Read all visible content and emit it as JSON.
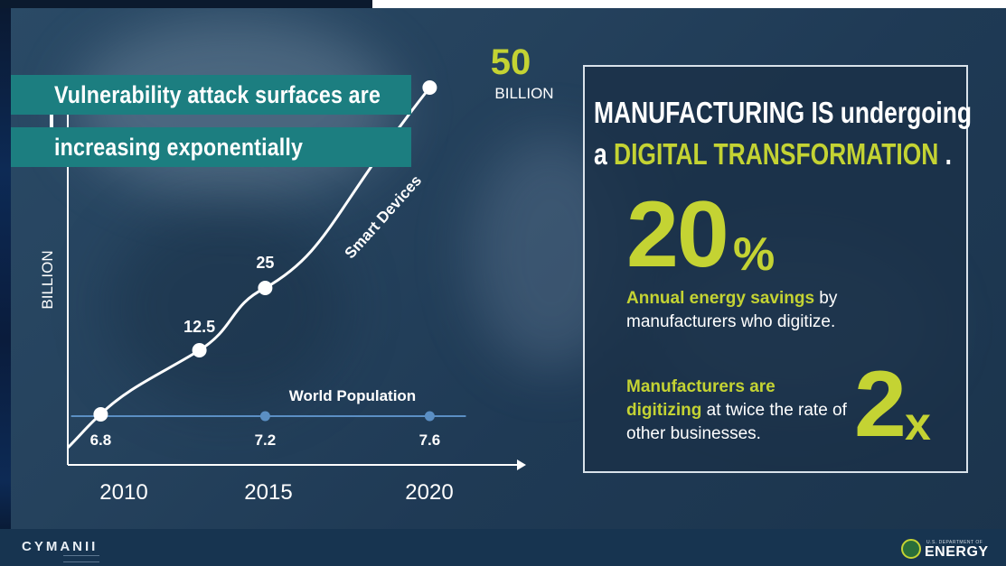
{
  "headline": {
    "line1": "Vulnerability attack surfaces are",
    "line2": "increasing exponentially"
  },
  "chart_data": {
    "type": "line",
    "ylabel": "BILLION",
    "xlabel": "",
    "x_ticks": [
      "2010",
      "2015",
      "2020"
    ],
    "series": [
      {
        "name": "Smart Devices",
        "points": [
          {
            "x": 2009,
            "y": 0,
            "label": ""
          },
          {
            "x": 2010,
            "y": 6.8,
            "label": ""
          },
          {
            "x": 2013,
            "y": 12.5,
            "label": "12.5"
          },
          {
            "x": 2015,
            "y": 25,
            "label": "25"
          },
          {
            "x": 2020,
            "y": 50,
            "label": "50"
          }
        ],
        "end_label_unit": "BILLION",
        "color": "#ffffff"
      },
      {
        "name": "World Population",
        "points": [
          {
            "x": 2010,
            "y": 6.8,
            "label": "6.8"
          },
          {
            "x": 2015,
            "y": 7.2,
            "label": "7.2"
          },
          {
            "x": 2020,
            "y": 7.6,
            "label": "7.6"
          }
        ],
        "color": "#5b8fc4"
      }
    ]
  },
  "panel": {
    "title_part1": "MANUFACTURING IS ",
    "title_part2": "undergoing",
    "title_part3": "a ",
    "title_part4": "DIGITAL TRANSFORMATION",
    "title_part5": " .",
    "stat1_value": "20",
    "stat1_unit": "%",
    "stat1_bold": "Annual energy savings",
    "stat1_rest": " by manufacturers who digitize.",
    "stat2_bold1": "Manufacturers are",
    "stat2_bold2": "digitizing",
    "stat2_rest": " at twice the rate of other businesses.",
    "stat2_value": "2",
    "stat2_unit": "x"
  },
  "footer": {
    "left_logo": "CYMANII",
    "right_logo_small": "U.S. DEPARTMENT OF",
    "right_logo_big": "ENERGY"
  },
  "colors": {
    "accent": "#c4d333",
    "banner": "#1c7e80",
    "population": "#5b8fc4"
  }
}
